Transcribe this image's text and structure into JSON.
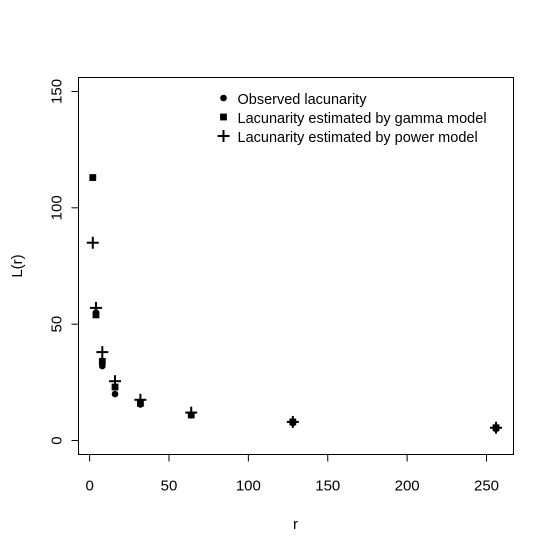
{
  "chart_data": {
    "type": "scatter",
    "xlabel": "r",
    "ylabel": "L(r)",
    "xlim": [
      -7,
      267
    ],
    "ylim": [
      -6,
      156
    ],
    "x_ticks": [
      0,
      50,
      100,
      150,
      200,
      250
    ],
    "y_ticks": [
      0,
      50,
      100,
      150
    ],
    "grid": false,
    "legend_position": "top",
    "series": [
      {
        "name": "Observed lacunarity",
        "marker": "circle",
        "color": "#000000",
        "points": [
          {
            "x": 2,
            "y": 113
          },
          {
            "x": 4,
            "y": 55
          },
          {
            "x": 8,
            "y": 32
          },
          {
            "x": 16,
            "y": 20
          },
          {
            "x": 32,
            "y": 15.5
          },
          {
            "x": 64,
            "y": 11
          },
          {
            "x": 128,
            "y": 7.5
          },
          {
            "x": 256,
            "y": 5
          }
        ]
      },
      {
        "name": "Lacunarity estimated by gamma model",
        "marker": "square",
        "color": "#000000",
        "points": [
          {
            "x": 2,
            "y": 113
          },
          {
            "x": 4,
            "y": 54
          },
          {
            "x": 8,
            "y": 34
          },
          {
            "x": 16,
            "y": 23
          },
          {
            "x": 32,
            "y": 16
          },
          {
            "x": 64,
            "y": 11
          },
          {
            "x": 128,
            "y": 8
          },
          {
            "x": 256,
            "y": 5.5
          }
        ]
      },
      {
        "name": "Lacunarity estimated by power model",
        "marker": "plus",
        "color": "#000000",
        "points": [
          {
            "x": 2,
            "y": 85
          },
          {
            "x": 4,
            "y": 57
          },
          {
            "x": 8,
            "y": 38
          },
          {
            "x": 16,
            "y": 25.5
          },
          {
            "x": 32,
            "y": 17.5
          },
          {
            "x": 64,
            "y": 12
          },
          {
            "x": 128,
            "y": 8
          },
          {
            "x": 256,
            "y": 5.5
          }
        ]
      }
    ]
  }
}
